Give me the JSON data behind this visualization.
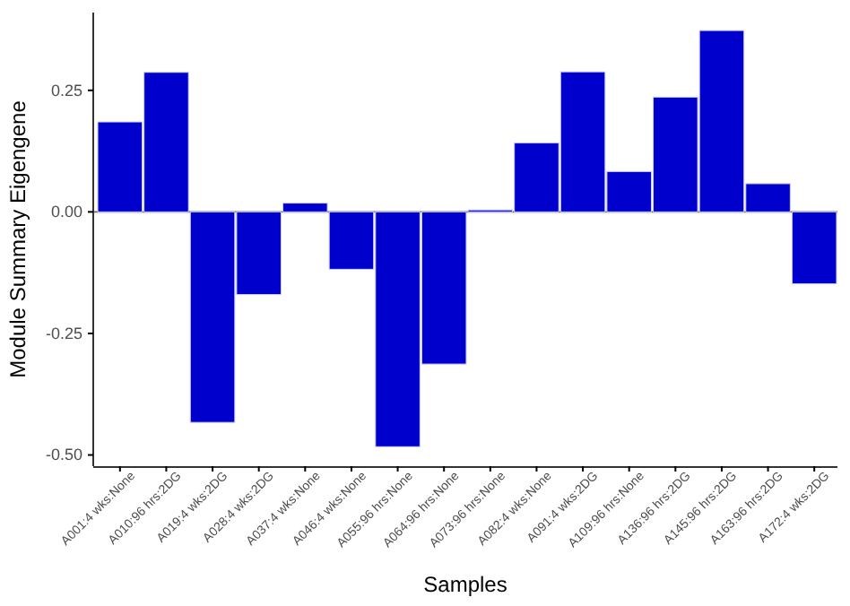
{
  "chart_data": {
    "type": "bar",
    "xlabel": "Samples",
    "ylabel": "Module Summary Eigengene",
    "categories": [
      "A001:4 wks:None",
      "A010:96 hrs:2DG",
      "A019:4 wks:2DG",
      "A028:4 wks:2DG",
      "A037:4 wks:None",
      "A046:4 wks:None",
      "A055:96 hrs:None",
      "A064:96 hrs:None",
      "A073:96 hrs:None",
      "A082:4 wks:None",
      "A091:4 wks:2DG",
      "A109:96 hrs:None",
      "A136:96 hrs:2DG",
      "A145:96 hrs:2DG",
      "A163:96 hrs:2DG",
      "A172:4 wks:2DG"
    ],
    "values": [
      0.185,
      0.287,
      -0.433,
      -0.17,
      0.018,
      -0.118,
      -0.483,
      -0.313,
      0.004,
      0.142,
      0.288,
      0.083,
      0.236,
      0.373,
      0.058,
      -0.148
    ],
    "color": "#0000cc",
    "ylim": [
      -0.523,
      0.41
    ],
    "yticks": [
      {
        "value": -0.5,
        "label": "-0.50"
      },
      {
        "value": -0.25,
        "label": "-0.25"
      },
      {
        "value": 0,
        "label": "0.00"
      },
      {
        "value": 0.25,
        "label": "0.25"
      }
    ],
    "ref_lines": [
      {
        "axis": "y",
        "value": 0,
        "color": "#666666"
      }
    ],
    "grid": false
  }
}
